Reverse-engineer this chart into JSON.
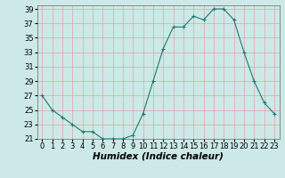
{
  "x": [
    0,
    1,
    2,
    3,
    4,
    5,
    6,
    7,
    8,
    9,
    10,
    11,
    12,
    13,
    14,
    15,
    16,
    17,
    18,
    19,
    20,
    21,
    22,
    23
  ],
  "y": [
    27,
    25,
    24,
    23,
    22,
    22,
    21,
    21,
    21,
    21.5,
    24.5,
    29,
    33.5,
    36.5,
    36.5,
    38,
    37.5,
    39,
    39,
    37.5,
    33,
    29,
    26,
    24.5
  ],
  "line_color": "#1a7a6e",
  "marker_color": "#1a7a6e",
  "bg_color": "#cce9e8",
  "grid_color": "#e8a0a0",
  "xlabel": "Humidex (Indice chaleur)",
  "xlim": [
    -0.5,
    23.5
  ],
  "ylim": [
    21,
    39.5
  ],
  "yticks": [
    21,
    23,
    25,
    27,
    29,
    31,
    33,
    35,
    37,
    39
  ],
  "xticks": [
    0,
    1,
    2,
    3,
    4,
    5,
    6,
    7,
    8,
    9,
    10,
    11,
    12,
    13,
    14,
    15,
    16,
    17,
    18,
    19,
    20,
    21,
    22,
    23
  ],
  "tick_fontsize": 6,
  "xlabel_fontsize": 7.5
}
